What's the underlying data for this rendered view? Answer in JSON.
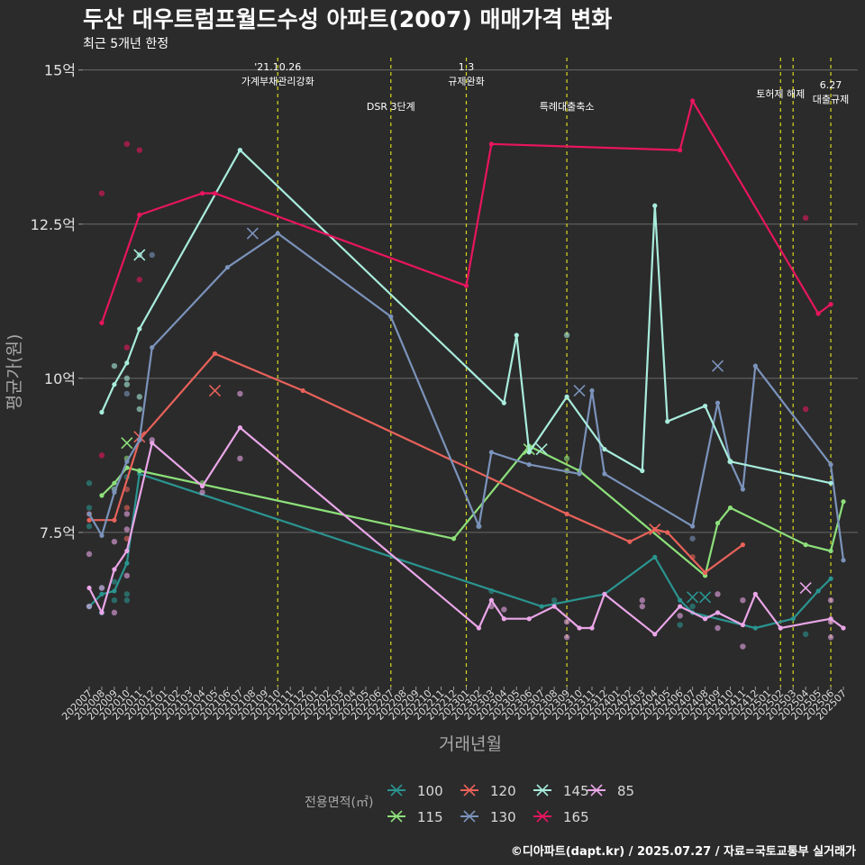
{
  "chart_data": {
    "type": "line",
    "title": "두산 대우트럼프월드수성 아파트(2007) 매매가격 변화",
    "subtitle": "최근 5개년 한정",
    "caption": "©디아파트(dapt.kr) / 2025.07.27 / 자료=국토교통부 실거래가",
    "xlabel": "거래년월",
    "ylabel": "평균가(원)",
    "legend_title": "전용면적(㎡)",
    "legend_position": "bottom",
    "grid": true,
    "ylim": [
      5.0,
      15.2
    ],
    "y_ticks": [
      7.5,
      10,
      12.5,
      15
    ],
    "y_tick_labels": [
      "7.5억",
      "10억",
      "12.5억",
      "15억"
    ],
    "x_ticks": [
      "202007",
      "202008",
      "202009",
      "202010",
      "202011",
      "202012",
      "202101",
      "202102",
      "202103",
      "202104",
      "202105",
      "202106",
      "202107",
      "202108",
      "202109",
      "202110",
      "202111",
      "202112",
      "202201",
      "202202",
      "202203",
      "202204",
      "202205",
      "202206",
      "202207",
      "202208",
      "202209",
      "202210",
      "202211",
      "202212",
      "202301",
      "202302",
      "202303",
      "202304",
      "202305",
      "202306",
      "202307",
      "202308",
      "202309",
      "202310",
      "202311",
      "202312",
      "202401",
      "202402",
      "202403",
      "202404",
      "202405",
      "202406",
      "202407",
      "202408",
      "202409",
      "202410",
      "202411",
      "202412",
      "202501",
      "202502",
      "202503",
      "202504",
      "202505",
      "202506",
      "202507"
    ],
    "annotations": [
      {
        "x": "202110",
        "text": "'21.10.26\n가계부채관리강화",
        "row": 0
      },
      {
        "x": "202207",
        "text": "DSR 3단계",
        "row": 2
      },
      {
        "x": "202301",
        "text": "1.3\n규제완화",
        "row": 0
      },
      {
        "x": "202309",
        "text": "특례대출축소",
        "row": 2
      },
      {
        "x": "202502",
        "text": "토허제 해제",
        "row": 1
      },
      {
        "x": "202503",
        "text": "",
        "row": 1
      },
      {
        "x": "202506",
        "text": "6.27\n대출규제",
        "row": 3
      }
    ],
    "series": [
      {
        "name": "100",
        "color": "#2a9490",
        "line": [
          [
            "202007",
            6.3
          ],
          [
            "202008",
            6.5
          ],
          [
            "202009",
            6.55
          ],
          [
            "202010",
            7.0
          ],
          [
            "202011",
            8.45
          ],
          [
            "202307",
            6.3
          ],
          [
            "202312",
            6.5
          ],
          [
            "202404",
            7.1
          ],
          [
            "202406",
            6.4
          ],
          [
            "202407",
            6.2
          ],
          [
            "202412",
            5.95
          ],
          [
            "202503",
            6.1
          ],
          [
            "202505",
            6.55
          ],
          [
            "202506",
            6.75
          ]
        ],
        "points": [
          [
            "202007",
            8.3
          ],
          [
            "202007",
            7.9
          ],
          [
            "202007",
            7.6
          ],
          [
            "202007",
            6.3
          ],
          [
            "202008",
            6.6
          ],
          [
            "202008",
            6.2
          ],
          [
            "202009",
            6.7
          ],
          [
            "202009",
            6.4
          ],
          [
            "202010",
            6.5
          ],
          [
            "202010",
            6.4
          ],
          [
            "202010",
            8.4
          ],
          [
            "202011",
            8.5
          ],
          [
            "202303",
            6.55
          ],
          [
            "202308",
            6.4
          ],
          [
            "202406",
            6.0
          ],
          [
            "202407",
            6.3
          ],
          [
            "202504",
            5.85
          ]
        ],
        "x_marks": [
          [
            "202407",
            6.45
          ],
          [
            "202408",
            6.45
          ]
        ]
      },
      {
        "name": "115",
        "color": "#8de07a",
        "line": [
          [
            "202008",
            8.1
          ],
          [
            "202009",
            8.3
          ],
          [
            "202010",
            8.55
          ],
          [
            "202011",
            8.5
          ],
          [
            "202212",
            7.4
          ],
          [
            "202306",
            8.9
          ],
          [
            "202310",
            8.5
          ],
          [
            "202408",
            6.8
          ],
          [
            "202409",
            7.65
          ],
          [
            "202410",
            7.9
          ],
          [
            "202504",
            7.3
          ],
          [
            "202506",
            7.2
          ],
          [
            "202507",
            8.0
          ]
        ],
        "points": [
          [
            "202009",
            8.2
          ],
          [
            "202010",
            8.7
          ],
          [
            "202104",
            8.3
          ],
          [
            "202309",
            8.5
          ],
          [
            "202309",
            8.7
          ]
        ],
        "x_marks": [
          [
            "202010",
            8.95
          ],
          [
            "202306",
            8.85
          ]
        ]
      },
      {
        "name": "120",
        "color": "#e8625a",
        "line": [
          [
            "202007",
            7.7
          ],
          [
            "202009",
            7.7
          ],
          [
            "202011",
            9.0
          ],
          [
            "202105",
            10.4
          ],
          [
            "202112",
            9.8
          ],
          [
            "202309",
            7.8
          ],
          [
            "202402",
            7.35
          ],
          [
            "202404",
            7.55
          ],
          [
            "202405",
            7.5
          ],
          [
            "202408",
            6.85
          ],
          [
            "202411",
            7.3
          ]
        ],
        "points": [
          [
            "202007",
            7.8
          ],
          [
            "202010",
            7.4
          ],
          [
            "202010",
            8.2
          ],
          [
            "202010",
            7.9
          ],
          [
            "202407",
            7.1
          ]
        ],
        "x_marks": [
          [
            "202011",
            9.05
          ],
          [
            "202105",
            9.8
          ],
          [
            "202404",
            7.55
          ]
        ]
      },
      {
        "name": "130",
        "color": "#7b93bb",
        "line": [
          [
            "202007",
            7.8
          ],
          [
            "202008",
            7.45
          ],
          [
            "202009",
            8.15
          ],
          [
            "202010",
            8.65
          ],
          [
            "202011",
            9.0
          ],
          [
            "202012",
            10.5
          ],
          [
            "202106",
            11.8
          ],
          [
            "202110",
            12.35
          ],
          [
            "202207",
            11.0
          ],
          [
            "202302",
            7.6
          ],
          [
            "202303",
            8.8
          ],
          [
            "202306",
            8.6
          ],
          [
            "202310",
            8.45
          ],
          [
            "202311",
            9.8
          ],
          [
            "202312",
            8.45
          ],
          [
            "202407",
            7.6
          ],
          [
            "202409",
            9.6
          ],
          [
            "202410",
            8.65
          ],
          [
            "202411",
            8.2
          ],
          [
            "202412",
            10.2
          ],
          [
            "202506",
            8.6
          ],
          [
            "202507",
            7.05
          ]
        ],
        "points": [
          [
            "202009",
            8.2
          ],
          [
            "202010",
            9.75
          ],
          [
            "202012",
            12.0
          ],
          [
            "202302",
            7.6
          ],
          [
            "202407",
            7.4
          ]
        ],
        "x_marks": [
          [
            "202108",
            12.35
          ],
          [
            "202310",
            9.8
          ],
          [
            "202409",
            10.2
          ]
        ]
      },
      {
        "name": "145",
        "color": "#a8ecdc",
        "line": [
          [
            "202008",
            9.45
          ],
          [
            "202009",
            9.9
          ],
          [
            "202010",
            10.25
          ],
          [
            "202011",
            10.8
          ],
          [
            "202107",
            13.7
          ],
          [
            "202304",
            9.6
          ],
          [
            "202305",
            10.7
          ],
          [
            "202306",
            8.8
          ],
          [
            "202309",
            9.7
          ],
          [
            "202312",
            8.85
          ],
          [
            "202403",
            8.5
          ],
          [
            "202404",
            12.8
          ],
          [
            "202405",
            9.3
          ],
          [
            "202408",
            9.55
          ],
          [
            "202410",
            8.65
          ],
          [
            "202506",
            8.3
          ]
        ],
        "points": [
          [
            "202009",
            10.2
          ],
          [
            "202010",
            9.9
          ],
          [
            "202010",
            10.0
          ],
          [
            "202011",
            9.7
          ],
          [
            "202011",
            9.5
          ],
          [
            "202011",
            12.0
          ],
          [
            "202309",
            10.7
          ],
          [
            "202410",
            8.65
          ]
        ],
        "x_marks": [
          [
            "202011",
            12.0
          ],
          [
            "202307",
            8.85
          ]
        ]
      },
      {
        "name": "165",
        "color": "#e8155f",
        "line": [
          [
            "202008",
            10.9
          ],
          [
            "202011",
            12.65
          ],
          [
            "202104",
            13.0
          ],
          [
            "202105",
            13.0
          ],
          [
            "202301",
            11.5
          ],
          [
            "202303",
            13.8
          ],
          [
            "202406",
            13.7
          ],
          [
            "202407",
            14.5
          ],
          [
            "202505",
            11.05
          ],
          [
            "202506",
            11.2
          ]
        ],
        "points": [
          [
            "202008",
            13.0
          ],
          [
            "202008",
            8.75
          ],
          [
            "202010",
            13.8
          ],
          [
            "202010",
            10.5
          ],
          [
            "202011",
            13.7
          ],
          [
            "202011",
            11.6
          ],
          [
            "202504",
            12.6
          ],
          [
            "202504",
            9.5
          ]
        ],
        "x_marks": []
      },
      {
        "name": "85",
        "color": "#eaa6e8",
        "line": [
          [
            "202007",
            6.6
          ],
          [
            "202008",
            6.2
          ],
          [
            "202009",
            6.9
          ],
          [
            "202010",
            7.2
          ],
          [
            "202012",
            8.95
          ],
          [
            "202104",
            8.25
          ],
          [
            "202107",
            9.2
          ],
          [
            "202302",
            5.95
          ],
          [
            "202303",
            6.4
          ],
          [
            "202304",
            6.1
          ],
          [
            "202306",
            6.1
          ],
          [
            "202308",
            6.3
          ],
          [
            "202310",
            5.95
          ],
          [
            "202311",
            5.95
          ],
          [
            "202312",
            6.5
          ],
          [
            "202404",
            5.85
          ],
          [
            "202406",
            6.3
          ],
          [
            "202408",
            6.1
          ],
          [
            "202409",
            6.2
          ],
          [
            "202411",
            6.0
          ],
          [
            "202412",
            6.5
          ],
          [
            "202502",
            5.95
          ],
          [
            "202506",
            6.1
          ],
          [
            "202507",
            5.95
          ]
        ],
        "points": [
          [
            "202007",
            7.15
          ],
          [
            "202007",
            6.3
          ],
          [
            "202008",
            6.6
          ],
          [
            "202009",
            7.35
          ],
          [
            "202009",
            6.2
          ],
          [
            "202010",
            7.55
          ],
          [
            "202010",
            7.8
          ],
          [
            "202010",
            6.8
          ],
          [
            "202012",
            9.0
          ],
          [
            "202104",
            8.15
          ],
          [
            "202107",
            8.7
          ],
          [
            "202107",
            9.75
          ],
          [
            "202303",
            6.3
          ],
          [
            "202304",
            6.25
          ],
          [
            "202309",
            5.8
          ],
          [
            "202309",
            6.05
          ],
          [
            "202403",
            6.4
          ],
          [
            "202403",
            6.3
          ],
          [
            "202406",
            6.15
          ],
          [
            "202409",
            5.95
          ],
          [
            "202409",
            6.5
          ],
          [
            "202411",
            6.4
          ],
          [
            "202411",
            5.65
          ],
          [
            "202506",
            6.4
          ],
          [
            "202506",
            5.8
          ],
          [
            "202506",
            6.05
          ]
        ],
        "x_marks": [
          [
            "202504",
            6.6
          ]
        ]
      }
    ]
  }
}
